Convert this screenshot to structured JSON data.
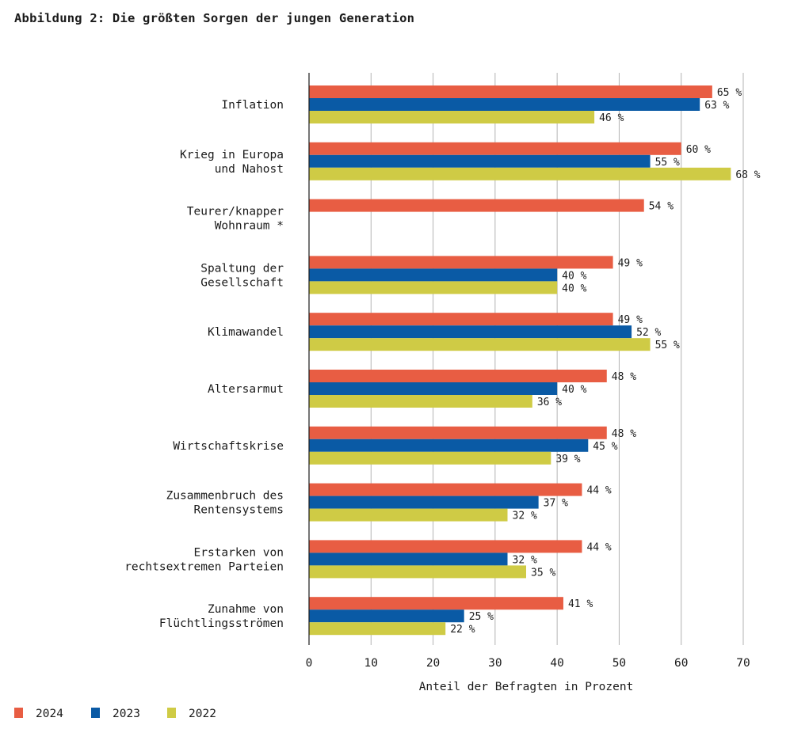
{
  "chart_data": {
    "type": "bar",
    "orientation": "horizontal",
    "title": "Abbildung 2: Die größten Sorgen der jungen Generation",
    "xlabel": "Anteil der Befragten in Prozent",
    "ylabel": "",
    "xlim": [
      0,
      70
    ],
    "xticks": [
      0,
      10,
      20,
      30,
      40,
      50,
      60,
      70
    ],
    "grid": true,
    "legend_position": "bottom-left",
    "value_suffix": "%",
    "categories": [
      [
        "Inflation"
      ],
      [
        "Krieg in Europa",
        "und Nahost"
      ],
      [
        "Teurer/knapper",
        "Wohnraum *"
      ],
      [
        "Spaltung der",
        "Gesellschaft"
      ],
      [
        "Klimawandel"
      ],
      [
        "Altersarmut"
      ],
      [
        "Wirtschaftskrise"
      ],
      [
        "Zusammenbruch des",
        "Rentensystems"
      ],
      [
        "Erstarken von",
        "rechtsextremen Parteien"
      ],
      [
        "Zunahme von",
        "Flüchtlingsströmen"
      ]
    ],
    "series": [
      {
        "name": "2024",
        "color": "#e85d43",
        "values": [
          65,
          60,
          54,
          49,
          49,
          48,
          48,
          44,
          44,
          41
        ]
      },
      {
        "name": "2023",
        "color": "#0a5aa5",
        "values": [
          63,
          55,
          null,
          40,
          52,
          40,
          45,
          37,
          32,
          25
        ]
      },
      {
        "name": "2022",
        "color": "#cfcb45",
        "values": [
          46,
          68,
          null,
          40,
          55,
          36,
          39,
          32,
          35,
          22
        ]
      }
    ]
  }
}
